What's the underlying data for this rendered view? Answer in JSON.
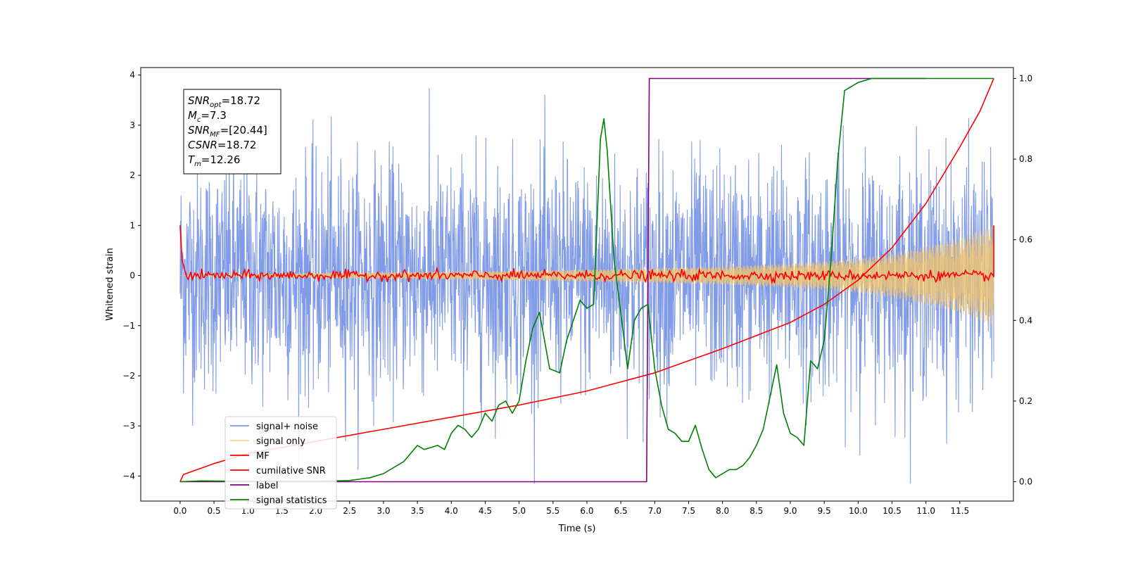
{
  "chart_data": {
    "type": "line",
    "title": "",
    "xlabel": "Time (s)",
    "ylabel": "Whitened strain",
    "ylabel_right": "",
    "xlim": [
      -0.58,
      12.29
    ],
    "ylim": [
      -4.5,
      4.15
    ],
    "ylim_right": [
      -0.048,
      1.027
    ],
    "x_ticks": [
      0.0,
      0.5,
      1.0,
      1.5,
      2.0,
      2.5,
      3.0,
      3.5,
      4.0,
      4.5,
      5.0,
      5.5,
      6.0,
      6.5,
      7.0,
      7.5,
      8.0,
      8.5,
      9.0,
      9.5,
      10.0,
      10.5,
      11.0,
      11.5
    ],
    "x_tick_labels": [
      "0.0",
      "0.5",
      "1.0",
      "1.5",
      "2.0",
      "2.5",
      "3.0",
      "3.5",
      "4.0",
      "4.5",
      "5.0",
      "5.5",
      "6.0",
      "6.5",
      "7.0",
      "7.5",
      "8.0",
      "8.5",
      "9.0",
      "9.5",
      "10.0",
      "10.5",
      "11.0",
      "11.5"
    ],
    "y_ticks": [
      4,
      3,
      2,
      1,
      0,
      -1,
      -2,
      -3,
      -4
    ],
    "y_tick_labels": [
      "4",
      "3",
      "2",
      "1",
      "0",
      "−1",
      "−2",
      "−3",
      "−4"
    ],
    "y_right_ticks": [
      1.0,
      0.8,
      0.6,
      0.4,
      0.2,
      0.0
    ],
    "y_right_tick_labels": [
      "1.0",
      "0.8",
      "0.6",
      "0.4",
      "0.2",
      "0.0"
    ],
    "grid": false,
    "legend_position": "lower-left",
    "annotation": {
      "lines": [
        {
          "base": "SNR",
          "sub": "opt",
          "rest": "=18.72"
        },
        {
          "base": "M",
          "sub": "c",
          "rest": "=7.3"
        },
        {
          "base": "SNR",
          "sub": "MF",
          "rest": "=[20.44]"
        },
        {
          "base": "CSNR",
          "sub": "",
          "rest": "=18.72"
        },
        {
          "base": "T",
          "sub": "m",
          "rest": "=12.26"
        }
      ]
    },
    "series": [
      {
        "name": "signal+ noise",
        "color": "#7a96e6",
        "axis": "left",
        "kind": "noise",
        "x_start": 0.0,
        "x_end": 12.0,
        "typical_range": [
          -2.4,
          2.4
        ],
        "max_peaks": 3.85,
        "min_peaks": -4.15
      },
      {
        "name": "signal only",
        "color": "#f5c466",
        "axis": "left",
        "kind": "chirp",
        "x": [
          0.0,
          2.0,
          4.0,
          6.0,
          7.0,
          8.0,
          9.0,
          10.0,
          10.5,
          11.0,
          11.5,
          12.0
        ],
        "amplitude": [
          0.0,
          0.05,
          0.08,
          0.12,
          0.15,
          0.18,
          0.24,
          0.34,
          0.44,
          0.58,
          0.75,
          1.0
        ]
      },
      {
        "name": "MF",
        "color": "#ff0000",
        "axis": "left",
        "kind": "matched-filter",
        "x": [
          0.0,
          0.03,
          0.1,
          12.0,
          12.0
        ],
        "y": [
          1.0,
          0.3,
          0.0,
          0.0,
          1.0
        ],
        "noise_level": 0.05
      },
      {
        "name": "cumilative SNR",
        "color": "#ff0000",
        "axis": "right",
        "x": [
          0.0,
          0.05,
          0.5,
          1.0,
          2.0,
          3.0,
          4.0,
          5.0,
          6.0,
          7.0,
          8.0,
          9.0,
          9.5,
          10.0,
          10.5,
          11.0,
          11.5,
          11.8,
          12.0
        ],
        "y": [
          0.0,
          0.018,
          0.045,
          0.07,
          0.1,
          0.13,
          0.16,
          0.19,
          0.225,
          0.27,
          0.33,
          0.395,
          0.44,
          0.5,
          0.58,
          0.69,
          0.83,
          0.92,
          1.0
        ]
      },
      {
        "name": "label",
        "color": "#800080",
        "axis": "right",
        "x": [
          0.0,
          6.88,
          6.92,
          11.0
        ],
        "y": [
          0.0,
          0.0,
          1.0,
          1.0
        ]
      },
      {
        "name": "signal statistics",
        "color": "#008000",
        "axis": "right",
        "x": [
          0.0,
          0.3,
          1.0,
          2.0,
          2.5,
          2.8,
          3.0,
          3.3,
          3.5,
          3.6,
          3.8,
          3.9,
          4.0,
          4.1,
          4.2,
          4.3,
          4.4,
          4.5,
          4.6,
          4.7,
          4.8,
          4.9,
          5.0,
          5.1,
          5.2,
          5.3,
          5.45,
          5.6,
          5.7,
          5.8,
          5.9,
          6.0,
          6.1,
          6.2,
          6.25,
          6.3,
          6.4,
          6.5,
          6.6,
          6.7,
          6.8,
          6.9,
          7.0,
          7.1,
          7.2,
          7.3,
          7.4,
          7.5,
          7.6,
          7.7,
          7.8,
          7.9,
          8.0,
          8.1,
          8.2,
          8.3,
          8.4,
          8.5,
          8.6,
          8.7,
          8.8,
          8.9,
          9.0,
          9.1,
          9.2,
          9.3,
          9.4,
          9.5,
          9.6,
          9.7,
          9.8,
          9.9,
          10.0,
          10.2,
          10.5,
          11.0,
          11.5,
          12.0
        ],
        "y": [
          0.0,
          0.002,
          0.001,
          0.001,
          0.003,
          0.01,
          0.02,
          0.05,
          0.09,
          0.08,
          0.09,
          0.08,
          0.12,
          0.14,
          0.13,
          0.11,
          0.13,
          0.17,
          0.15,
          0.19,
          0.2,
          0.17,
          0.2,
          0.3,
          0.38,
          0.42,
          0.28,
          0.27,
          0.35,
          0.4,
          0.45,
          0.43,
          0.44,
          0.85,
          0.9,
          0.82,
          0.55,
          0.42,
          0.28,
          0.4,
          0.43,
          0.44,
          0.28,
          0.19,
          0.13,
          0.12,
          0.1,
          0.1,
          0.14,
          0.08,
          0.03,
          0.01,
          0.02,
          0.03,
          0.03,
          0.04,
          0.06,
          0.09,
          0.13,
          0.21,
          0.29,
          0.17,
          0.12,
          0.11,
          0.09,
          0.3,
          0.28,
          0.35,
          0.55,
          0.8,
          0.97,
          0.98,
          0.99,
          1.0,
          1.0,
          1.0,
          1.0,
          1.0
        ]
      }
    ]
  }
}
